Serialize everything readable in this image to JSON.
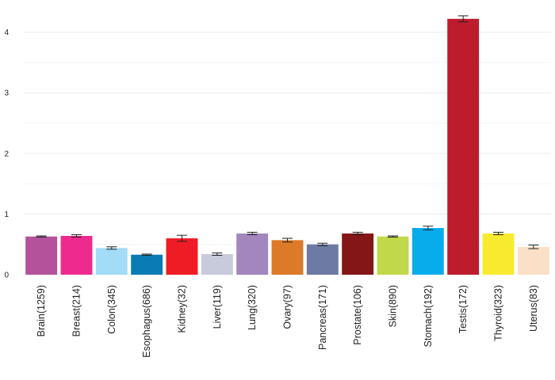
{
  "chart_data": {
    "type": "bar",
    "title": "",
    "xlabel": "",
    "ylabel": "",
    "ylim": [
      0,
      4.4
    ],
    "yticks": [
      0,
      1,
      2,
      3,
      4
    ],
    "grid": true,
    "categories": [
      "Brain(1259)",
      "Breast(214)",
      "Colon(345)",
      "Esophagus(686)",
      "Kidney(32)",
      "Liver(119)",
      "Lung(320)",
      "Ovary(97)",
      "Pancreas(171)",
      "Prostate(106)",
      "Skin(890)",
      "Stomach(192)",
      "Testis(172)",
      "Thyroid(323)",
      "Uterus(83)"
    ],
    "values": [
      0.63,
      0.64,
      0.44,
      0.33,
      0.6,
      0.34,
      0.68,
      0.57,
      0.5,
      0.68,
      0.63,
      0.77,
      4.22,
      0.68,
      0.46
    ],
    "errors": [
      0.01,
      0.02,
      0.02,
      0.01,
      0.05,
      0.02,
      0.02,
      0.03,
      0.02,
      0.02,
      0.01,
      0.03,
      0.05,
      0.02,
      0.03
    ],
    "colors": [
      "#b5529c",
      "#ef2a8e",
      "#a3dcf7",
      "#0a7bb5",
      "#ef1c26",
      "#c8cbdc",
      "#a386be",
      "#dc7a28",
      "#6d7aa3",
      "#841618",
      "#c0d849",
      "#09aceb",
      "#bd1c2d",
      "#f8eb2f",
      "#fae0c7"
    ]
  }
}
